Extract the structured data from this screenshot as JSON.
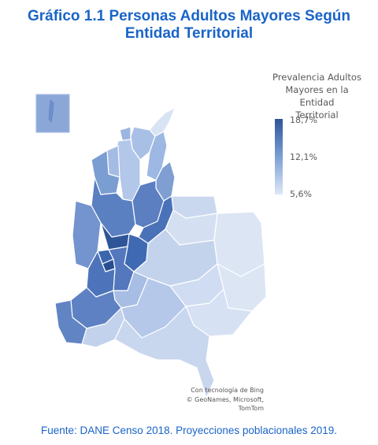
{
  "title": {
    "line1": "Gráfico 1.1 Personas Adultos Mayores Según",
    "line2": "Entidad Territorial"
  },
  "legend": {
    "title_lines": [
      "Prevalencia Adultos",
      "Mayores en la Entidad",
      "Territorial"
    ],
    "max_label": "18,7%",
    "mid_label": "12,1%",
    "min_label": "5,6%",
    "color_max": "#2d5598",
    "color_mid": "#7c9fd4",
    "color_min": "#dfe8f6"
  },
  "credit": {
    "line1": "Con tecnología de Bing",
    "line2": "© GeoNames, Microsoft, TomTom"
  },
  "source": "Fuente: DANE Censo 2018. Proyecciones poblacionales 2019.",
  "map": {
    "subject": "Colombia departments choropleth",
    "inset": "San Andrés y Providencia"
  }
}
